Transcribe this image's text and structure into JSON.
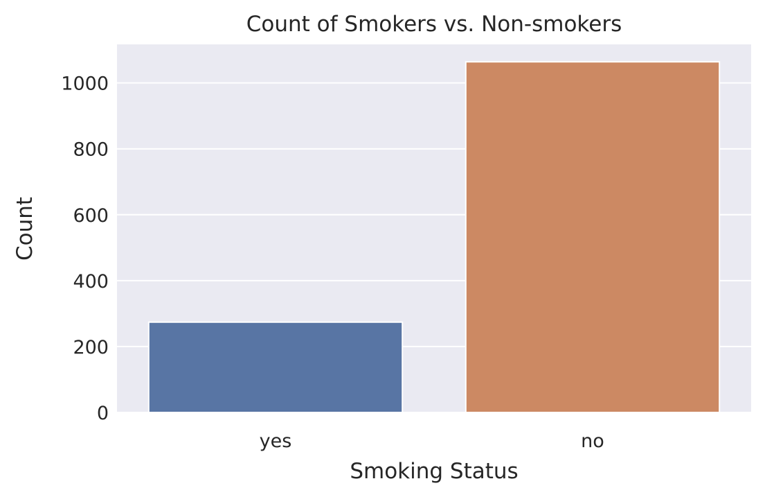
{
  "chart_data": {
    "type": "bar",
    "title": "Count of Smokers vs. Non-smokers",
    "xlabel": "Smoking Status",
    "ylabel": "Count",
    "categories": [
      "yes",
      "no"
    ],
    "values": [
      274,
      1064
    ],
    "ylim": [
      0,
      1117
    ],
    "yticks": [
      0,
      200,
      400,
      600,
      800,
      1000
    ],
    "grid": true,
    "legend": "none",
    "colors": {
      "bars": [
        "#5875a4",
        "#cc8963"
      ],
      "plot_background": "#eaeaf2",
      "grid": "#ffffff",
      "text": "#262626"
    }
  }
}
